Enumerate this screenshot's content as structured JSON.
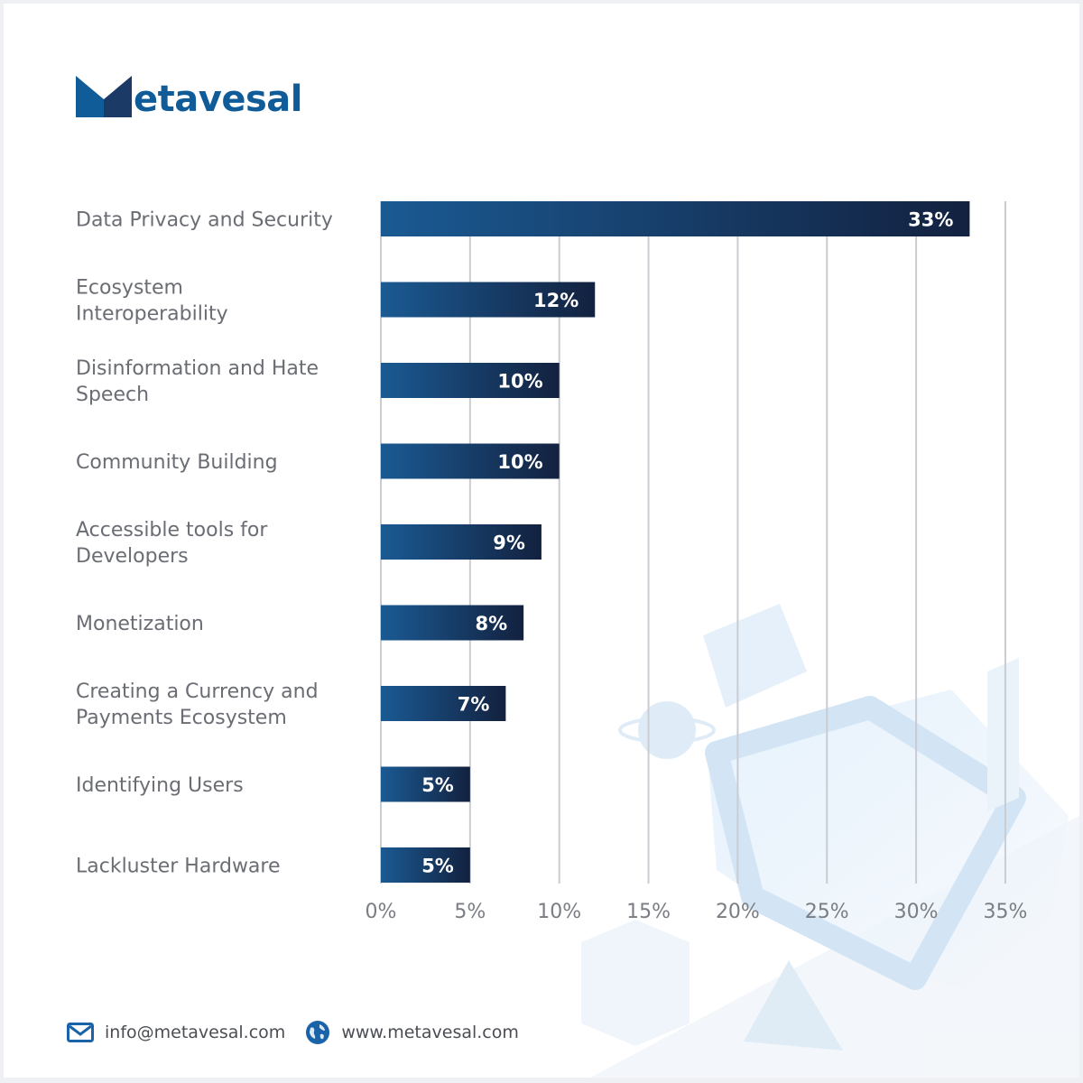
{
  "brand": {
    "name": "etavesal",
    "color": "#0f5c99"
  },
  "colors": {
    "bar_start": "#1a5a93",
    "bar_end": "#13213f",
    "grid": "#c9ccd1"
  },
  "chart_data": {
    "type": "bar",
    "orientation": "horizontal",
    "categories": [
      "Data Privacy and Security",
      "Ecosystem Interoperability",
      "Disinformation and Hate Speech",
      "Community Building",
      "Accessible tools for Developers",
      "Monetization",
      "Creating a Currency and Payments Ecosystem",
      "Identifying Users",
      "Lackluster Hardware"
    ],
    "category_lines": [
      [
        "Data Privacy and Security"
      ],
      [
        "Ecosystem",
        "Interoperability"
      ],
      [
        "Disinformation and Hate",
        "Speech"
      ],
      [
        "Community Building"
      ],
      [
        "Accessible tools for",
        "Developers"
      ],
      [
        "Monetization"
      ],
      [
        "Creating a Currency and",
        "Payments Ecosystem"
      ],
      [
        "Identifying Users"
      ],
      [
        "Lackluster Hardware"
      ]
    ],
    "values": [
      33,
      12,
      10,
      10,
      9,
      8,
      7,
      5,
      5
    ],
    "value_labels": [
      "33%",
      "12%",
      "10%",
      "10%",
      "9%",
      "8%",
      "7%",
      "5%",
      "5%"
    ],
    "x_ticks": [
      0,
      5,
      10,
      15,
      20,
      25,
      30,
      35
    ],
    "x_tick_labels": [
      "0%",
      "5%",
      "10%",
      "15%",
      "20%",
      "25%",
      "30%",
      "35%"
    ],
    "xlim": [
      0,
      35
    ],
    "grid": true,
    "title": "",
    "xlabel": "",
    "ylabel": ""
  },
  "footer": {
    "email": "info@metavesal.com",
    "website": "www.metavesal.com",
    "email_icon": "mail-icon",
    "web_icon": "globe-icon"
  }
}
